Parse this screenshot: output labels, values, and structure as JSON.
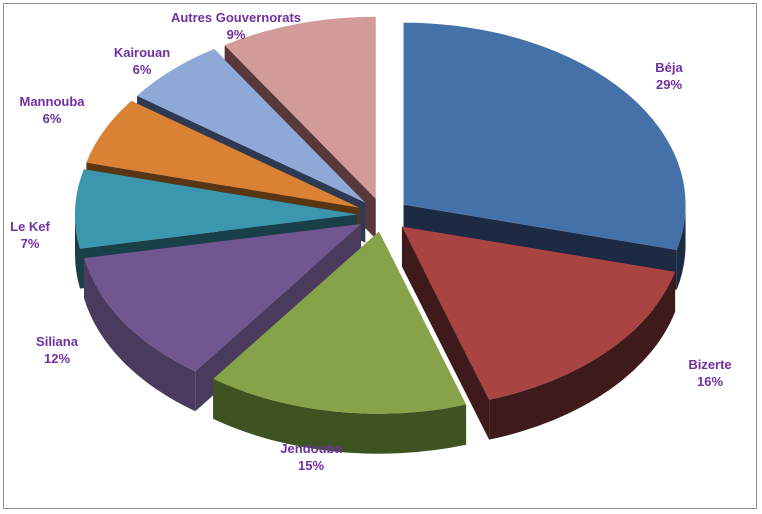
{
  "chart_data": {
    "type": "pie",
    "variant": "3d-exploded",
    "title": "",
    "label_color": "#7030a0",
    "slices": [
      {
        "label": "Béja",
        "pct_label": "29%",
        "value": 29,
        "color": "#4472a8",
        "side_color": "#1c2a44"
      },
      {
        "label": "Bizerte",
        "pct_label": "16%",
        "value": 16,
        "color": "#a94442",
        "side_color": "#3f1a1a"
      },
      {
        "label": "Jendouba",
        "pct_label": "15%",
        "value": 15,
        "color": "#86a34a",
        "side_color": "#3f5222"
      },
      {
        "label": "Siliana",
        "pct_label": "12%",
        "value": 12,
        "color": "#71568f",
        "side_color": "#4a3a5e"
      },
      {
        "label": "Le Kef",
        "pct_label": "7%",
        "value": 7,
        "color": "#3b97ad",
        "side_color": "#193f48"
      },
      {
        "label": "Mannouba",
        "pct_label": "6%",
        "value": 6,
        "color": "#da8134",
        "side_color": "#5a3514"
      },
      {
        "label": "Kairouan",
        "pct_label": "6%",
        "value": 6,
        "color": "#8ea9d8",
        "side_color": "#2e3a52"
      },
      {
        "label": "Autres Gouvernorats",
        "pct_label": "9%",
        "value": 9,
        "color": "#d29a98",
        "side_color": "#58383a"
      }
    ]
  }
}
